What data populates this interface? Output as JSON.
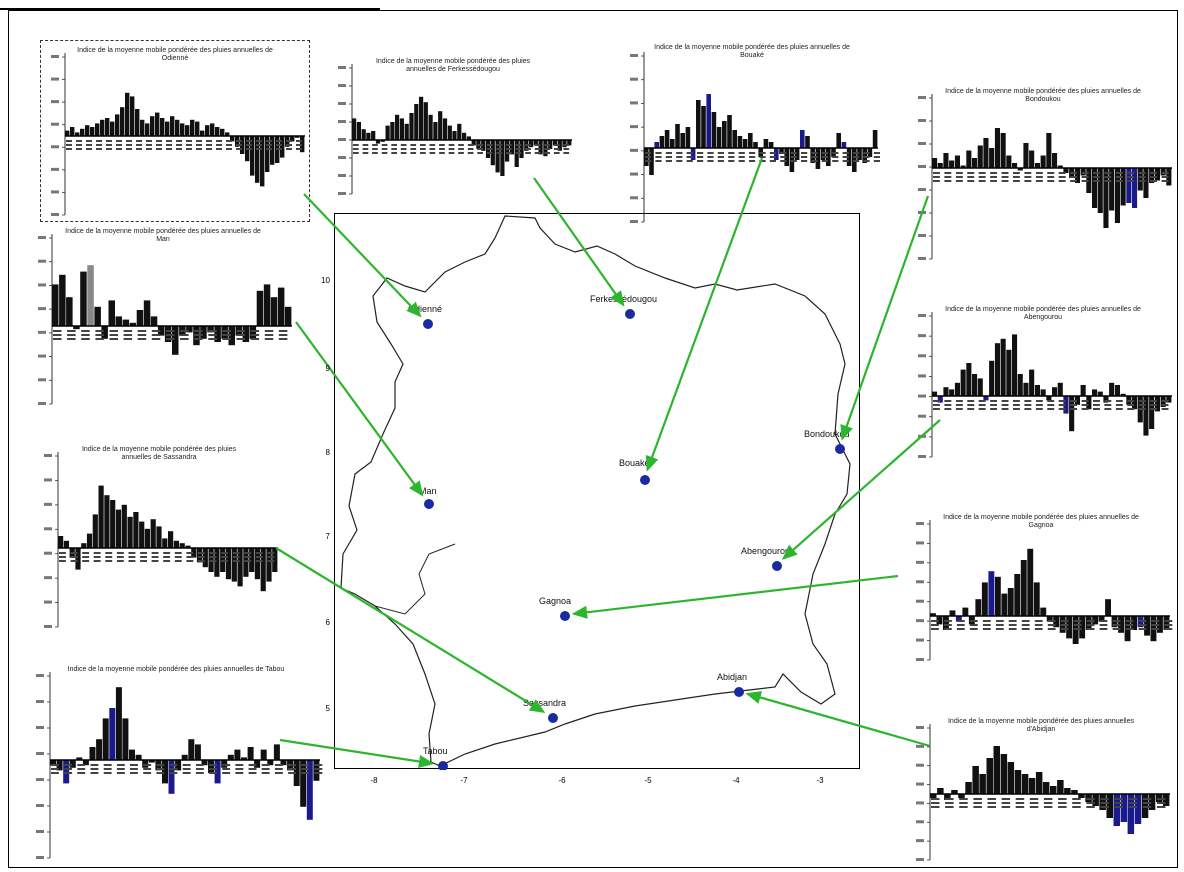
{
  "colors": {
    "bar_dark": "#111111",
    "bar_blue": "#1a1a8c",
    "bar_gray": "#888888",
    "arrow": "#2db52d",
    "dot": "#1a2aa0",
    "outline": "#222222"
  },
  "map": {
    "x_ticks": [
      "-8",
      "-7",
      "-6",
      "-5",
      "-4",
      "-3"
    ],
    "y_ticks": [
      "10",
      "9",
      "8",
      "7",
      "6",
      "5"
    ],
    "cities": [
      {
        "id": "odienne",
        "label": "Odienné"
      },
      {
        "id": "ferke",
        "label": "Ferkessédougou"
      },
      {
        "id": "bouake",
        "label": "Bouaké"
      },
      {
        "id": "bondoukou",
        "label": "Bondoukou"
      },
      {
        "id": "man",
        "label": "Man"
      },
      {
        "id": "abengourou",
        "label": "Abengourou"
      },
      {
        "id": "gagnoa",
        "label": "Gagnoa"
      },
      {
        "id": "abidjan",
        "label": "Abidjan"
      },
      {
        "id": "sassandra",
        "label": "Sassandra"
      },
      {
        "id": "tabou",
        "label": "Tabou"
      }
    ]
  },
  "panels": [
    {
      "id": "odienne",
      "title": "Indice de la moyenne mobile pondérée des pluies annuelles de Odienné",
      "values": [
        0.3,
        0.5,
        0.2,
        0.4,
        0.6,
        0.5,
        0.7,
        0.9,
        1.0,
        0.8,
        1.2,
        1.6,
        2.4,
        2.2,
        1.5,
        0.9,
        0.7,
        1.1,
        1.3,
        1.0,
        0.8,
        1.1,
        0.9,
        0.7,
        0.6,
        0.9,
        0.8,
        0.3,
        0.6,
        0.7,
        0.5,
        0.4,
        0.2,
        -0.3,
        -0.6,
        -1.0,
        -1.4,
        -2.2,
        -2.6,
        -2.8,
        -2.0,
        -1.6,
        -1.5,
        -1.2,
        -0.6,
        -0.3,
        -0.1,
        -0.9
      ]
    },
    {
      "id": "ferke",
      "title": "Indice de la moyenne mobile pondérée des pluies annuelles de Ferkessédougou",
      "values": [
        1.2,
        1.0,
        0.6,
        0.4,
        0.5,
        -0.2,
        -0.1,
        0.8,
        1.0,
        1.4,
        1.2,
        0.9,
        1.5,
        2.0,
        2.4,
        2.1,
        1.4,
        1.0,
        1.6,
        1.2,
        0.8,
        0.5,
        0.9,
        0.4,
        0.2,
        -0.3,
        -0.5,
        -0.6,
        -1.0,
        -1.4,
        -1.8,
        -2.0,
        -1.2,
        -0.8,
        -1.5,
        -1.0,
        -0.6,
        -0.4,
        -0.3,
        -0.8,
        -0.9,
        -0.5,
        -0.3,
        -0.6,
        -0.4,
        -0.3
      ]
    },
    {
      "id": "bouake",
      "title": "Indice de la moyenne mobile pondérée des pluies annuelles de Bouaké",
      "values": [
        -0.6,
        -0.9,
        0.2,
        0.4,
        0.6,
        0.3,
        0.8,
        0.5,
        0.7,
        -0.4,
        1.6,
        1.4,
        1.8,
        1.2,
        0.7,
        0.9,
        1.1,
        0.6,
        0.4,
        0.3,
        0.5,
        0.2,
        -0.3,
        0.3,
        0.2,
        -0.4,
        -0.2,
        -0.6,
        -0.8,
        -0.4,
        0.6,
        0.4,
        -0.5,
        -0.7,
        -0.4,
        -0.6,
        -0.3,
        0.5,
        0.2,
        -0.6,
        -0.8,
        -0.4,
        -0.5,
        -0.3,
        0.6
      ]
    },
    {
      "id": "bondoukou",
      "title": "Indice de la moyenne mobile pondérée des pluies annuelles de Bondoukou",
      "values": [
        0.4,
        0.2,
        0.6,
        0.3,
        0.5,
        0.1,
        0.7,
        0.4,
        0.9,
        1.2,
        0.8,
        1.6,
        1.4,
        0.5,
        0.2,
        -0.1,
        1.0,
        0.7,
        0.2,
        0.5,
        1.4,
        0.6,
        0.1,
        -0.2,
        -0.4,
        -0.6,
        -0.3,
        -1.0,
        -1.6,
        -1.8,
        -2.4,
        -1.7,
        -2.2,
        -1.5,
        -1.4,
        -1.6,
        -0.9,
        -1.2,
        -0.6,
        -0.5,
        -0.3,
        -0.7
      ]
    },
    {
      "id": "man",
      "title": "Indice de la moyenne mobile pondérée des pluies annuelles de Man",
      "values": [
        1.3,
        1.6,
        0.9,
        -0.1,
        1.7,
        1.9,
        0.6,
        -0.4,
        0.8,
        0.3,
        0.2,
        0.1,
        0.5,
        0.8,
        0.3,
        -0.3,
        -0.5,
        -0.9,
        -0.3,
        -0.2,
        -0.6,
        -0.4,
        -0.2,
        -0.5,
        -0.4,
        -0.6,
        -0.3,
        -0.5,
        -0.4,
        1.1,
        1.3,
        0.9,
        1.2,
        0.6
      ]
    },
    {
      "id": "bondoukou2",
      "title": "Indice de la moyenne mobile pondérée des pluies annuelles de Abengourou",
      "values": [
        0.2,
        -0.3,
        0.4,
        0.3,
        0.6,
        1.2,
        1.5,
        1.0,
        0.8,
        -0.2,
        1.6,
        2.4,
        2.6,
        2.1,
        2.8,
        1.0,
        0.6,
        1.2,
        0.5,
        0.3,
        -0.2,
        0.4,
        0.6,
        -0.8,
        -1.6,
        -0.4,
        0.5,
        -0.6,
        0.3,
        0.2,
        -0.3,
        0.6,
        0.5,
        0.1,
        -0.4,
        -0.6,
        -1.2,
        -1.8,
        -1.5,
        -0.7,
        -0.5,
        -0.3
      ]
    },
    {
      "id": "sassandra",
      "title": "Indice de la moyenne mobile pondérée des pluies annuelles de Sassandra",
      "values": [
        0.5,
        0.3,
        -0.4,
        -0.9,
        0.2,
        0.6,
        1.4,
        2.6,
        2.2,
        2.0,
        1.6,
        1.8,
        1.3,
        1.5,
        1.1,
        0.8,
        1.2,
        0.9,
        0.4,
        0.7,
        0.3,
        0.2,
        0.1,
        -0.4,
        -0.6,
        -0.8,
        -1.0,
        -1.2,
        -1.0,
        -1.3,
        -1.4,
        -1.6,
        -1.2,
        -1.0,
        -1.3,
        -1.8,
        -1.4,
        -1.0
      ]
    },
    {
      "id": "gagnoa",
      "title": "Indice de la moyenne mobile pondérée des pluies annuelles de Gagnoa",
      "values": [
        0.1,
        -0.3,
        -0.5,
        0.2,
        -0.2,
        0.3,
        -0.3,
        0.6,
        1.2,
        1.6,
        1.4,
        0.8,
        1.0,
        1.5,
        2.0,
        2.4,
        1.2,
        0.3,
        -0.2,
        -0.4,
        -0.6,
        -0.8,
        -1.0,
        -0.8,
        -0.5,
        -0.3,
        -0.2,
        0.6,
        -0.4,
        -0.6,
        -0.9,
        -0.5,
        -0.4,
        -0.7,
        -0.9,
        -0.6,
        -0.5
      ]
    },
    {
      "id": "tabou",
      "title": "Indice de la moyenne mobile pondérée des pluies annuelles de Tabou",
      "values": [
        -0.2,
        -0.4,
        -0.9,
        -0.3,
        0.1,
        -0.2,
        0.5,
        0.8,
        1.6,
        2.0,
        2.8,
        1.6,
        0.4,
        0.2,
        -0.3,
        -0.1,
        -0.4,
        -0.9,
        -1.3,
        -0.4,
        0.2,
        0.8,
        0.6,
        -0.2,
        -0.5,
        -0.9,
        -0.3,
        0.2,
        0.4,
        0.1,
        0.5,
        -0.3,
        0.4,
        -0.2,
        0.6,
        -0.2,
        -0.4,
        -1.0,
        -1.8,
        -2.3,
        -0.8
      ]
    },
    {
      "id": "abidjan",
      "title": "Indice de la moyenne mobile pondérée des pluies annuelles d'Abidjan",
      "values": [
        -0.2,
        0.3,
        -0.3,
        0.2,
        -0.2,
        0.6,
        1.4,
        1.0,
        1.8,
        2.4,
        2.0,
        1.6,
        1.2,
        1.0,
        0.8,
        1.1,
        0.6,
        0.4,
        0.7,
        0.3,
        0.2,
        -0.2,
        -0.4,
        -0.6,
        -0.8,
        -1.2,
        -1.6,
        -1.4,
        -2.0,
        -1.5,
        -1.2,
        -0.8,
        -0.4,
        -0.6
      ]
    }
  ]
}
